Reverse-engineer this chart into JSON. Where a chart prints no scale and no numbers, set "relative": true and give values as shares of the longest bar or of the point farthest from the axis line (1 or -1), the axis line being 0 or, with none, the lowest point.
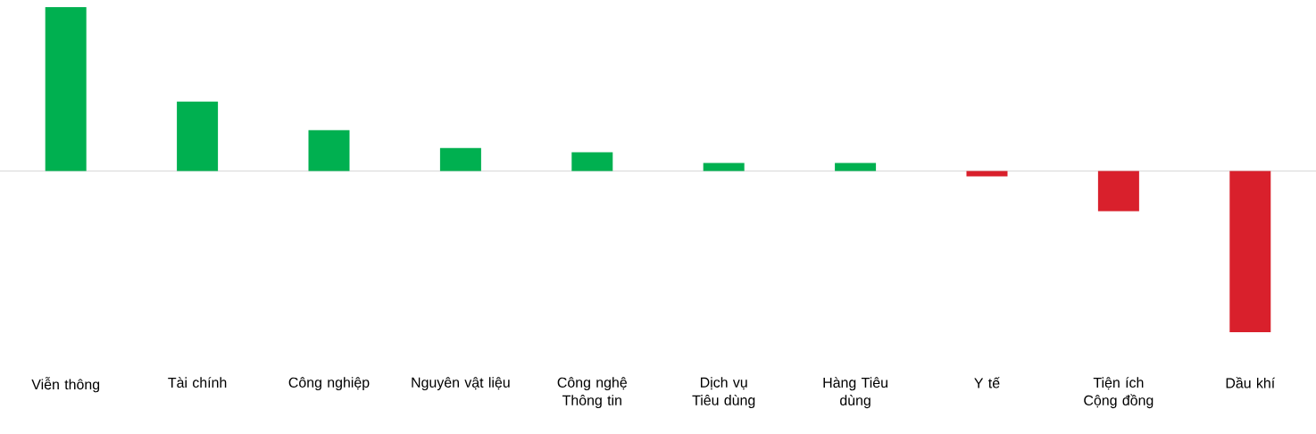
{
  "chart_data": {
    "type": "bar",
    "relative": true,
    "categories": [
      "Viễn thông",
      "Tài chính",
      "Công nghiệp",
      "Nguyên vật liệu",
      "Công nghệ Thông tin",
      "Dịch vụ Tiêu dùng",
      "Hàng Tiêu dùng",
      "Y tế",
      "Tiện ích Cộng đồng",
      "Dầu khí"
    ],
    "values": [
      1,
      0.424,
      0.25,
      0.141,
      0.114,
      0.049,
      0.049,
      -0.033,
      -0.245,
      -0.984
    ],
    "colors": [
      "#00b050",
      "#00b050",
      "#00b050",
      "#00b050",
      "#00b050",
      "#00b050",
      "#00b050",
      "#d9202c",
      "#d9202c",
      "#d9202c"
    ]
  }
}
